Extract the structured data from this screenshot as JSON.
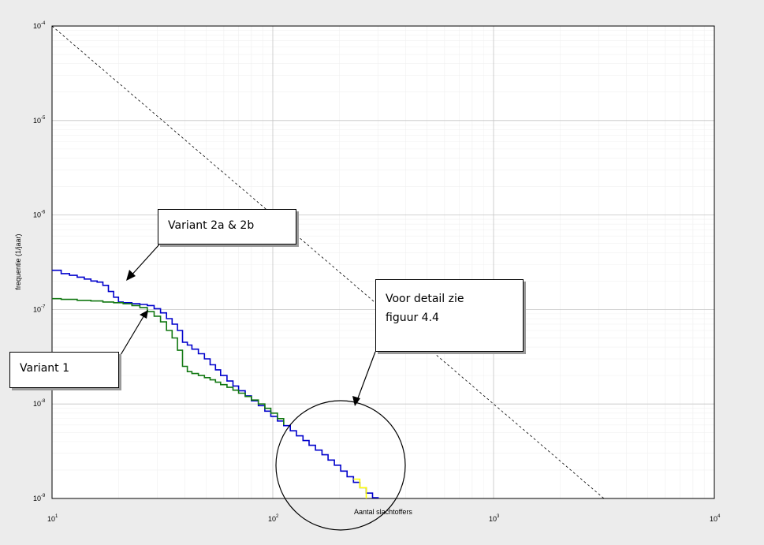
{
  "chart_data": {
    "type": "line",
    "xlabel": "Aantal slachtoffers",
    "ylabel": "frequentie (1/jaar)",
    "xscale": "log",
    "yscale": "log",
    "xlim": [
      10,
      10000
    ],
    "ylim": [
      1e-09,
      0.0001
    ],
    "grid": true,
    "x_ticks": [
      {
        "base": "10",
        "exp": "1"
      },
      {
        "base": "10",
        "exp": "2"
      },
      {
        "base": "10",
        "exp": "3"
      },
      {
        "base": "10",
        "exp": "4"
      }
    ],
    "y_ticks": [
      {
        "base": "10",
        "exp": "-4"
      },
      {
        "base": "10",
        "exp": "-5"
      },
      {
        "base": "10",
        "exp": "-6"
      },
      {
        "base": "10",
        "exp": "-7"
      },
      {
        "base": "10",
        "exp": "-8"
      },
      {
        "base": "10",
        "exp": "-9"
      }
    ],
    "norm_line": {
      "x": [
        10,
        3162
      ],
      "y": [
        0.0001,
        1e-09
      ]
    },
    "series": [
      {
        "color": "#0000cc",
        "x": [
          10,
          11,
          12,
          13,
          14,
          15,
          16,
          17,
          18,
          19,
          20,
          21,
          23,
          25,
          27,
          29,
          31,
          33,
          35,
          37,
          39,
          41,
          43,
          46,
          49,
          52,
          55,
          58,
          62,
          66,
          70,
          75,
          80,
          86,
          92,
          98,
          105,
          112,
          120,
          128,
          137,
          146,
          156,
          167,
          178,
          190,
          203,
          217,
          232,
          248,
          265,
          283,
          300
        ],
        "y": [
          2.6e-07,
          2.4e-07,
          2.3e-07,
          2.2e-07,
          2.1e-07,
          2e-07,
          1.95e-07,
          1.8e-07,
          1.55e-07,
          1.35e-07,
          1.2e-07,
          1.18e-07,
          1.15e-07,
          1.13e-07,
          1.1e-07,
          1.02e-07,
          9.2e-08,
          8e-08,
          7e-08,
          6e-08,
          4.5e-08,
          4.2e-08,
          3.8e-08,
          3.4e-08,
          3e-08,
          2.6e-08,
          2.3e-08,
          2e-08,
          1.75e-08,
          1.55e-08,
          1.38e-08,
          1.22e-08,
          1.08e-08,
          9.6e-09,
          8.4e-09,
          7.4e-09,
          6.6e-09,
          5.9e-09,
          5.2e-09,
          4.6e-09,
          4.1e-09,
          3.65e-09,
          3.25e-09,
          2.9e-09,
          2.55e-09,
          2.25e-09,
          1.95e-09,
          1.7e-09,
          1.48e-09,
          1.3e-09,
          1.14e-09,
          1.02e-09,
          1e-09
        ]
      },
      {
        "color": "#117711",
        "x": [
          10,
          11,
          13,
          15,
          17,
          19,
          21,
          23,
          25,
          27,
          29,
          31,
          33,
          35,
          37,
          39,
          41,
          43,
          46,
          49,
          52,
          55,
          58,
          62,
          66,
          70,
          75,
          80,
          86,
          92,
          98,
          105,
          112
        ],
        "y": [
          1.3e-07,
          1.28e-07,
          1.25e-07,
          1.23e-07,
          1.2e-07,
          1.18e-07,
          1.15e-07,
          1.1e-07,
          1.05e-07,
          9.5e-08,
          8.5e-08,
          7.4e-08,
          6e-08,
          5e-08,
          3.7e-08,
          2.5e-08,
          2.2e-08,
          2.1e-08,
          2e-08,
          1.9e-08,
          1.8e-08,
          1.7e-08,
          1.6e-08,
          1.5e-08,
          1.4e-08,
          1.3e-08,
          1.2e-08,
          1.1e-08,
          1e-08,
          9e-09,
          8e-09,
          7e-09,
          6e-09
        ]
      },
      {
        "color": "#ffff00",
        "x": [
          232,
          248,
          265
        ],
        "y": [
          1.6e-09,
          1.3e-09,
          1e-09
        ]
      }
    ],
    "annotations": [
      {
        "text": "Variant 2a & 2b",
        "lines": [
          "Variant 2a & 2b"
        ]
      },
      {
        "text": "Variant 1",
        "lines": [
          "Variant 1"
        ]
      },
      {
        "text": "Voor detail zie figuur 4.4",
        "lines": [
          "Voor detail zie",
          "figuur 4.4"
        ]
      }
    ]
  }
}
